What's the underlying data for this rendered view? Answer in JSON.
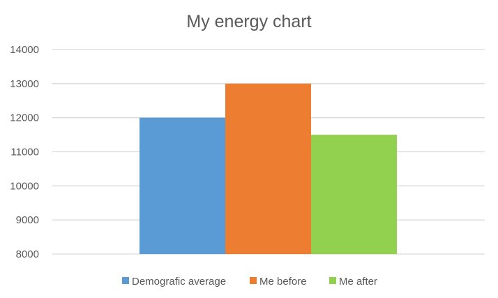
{
  "chart_data": {
    "type": "bar",
    "title": "My energy chart",
    "xlabel": "",
    "ylabel": "",
    "categories": [
      ""
    ],
    "series": [
      {
        "name": "Demografic average",
        "values": [
          12000
        ],
        "color": "#5b9bd5"
      },
      {
        "name": "Me before",
        "values": [
          13000
        ],
        "color": "#ed7d31"
      },
      {
        "name": "Me after",
        "values": [
          11500
        ],
        "color": "#92d050"
      }
    ],
    "ylim": [
      8000,
      14000
    ],
    "yticks": [
      "8000",
      "9000",
      "10000",
      "11000",
      "12000",
      "13000",
      "14000"
    ],
    "grid": true,
    "legend_position": "bottom"
  }
}
